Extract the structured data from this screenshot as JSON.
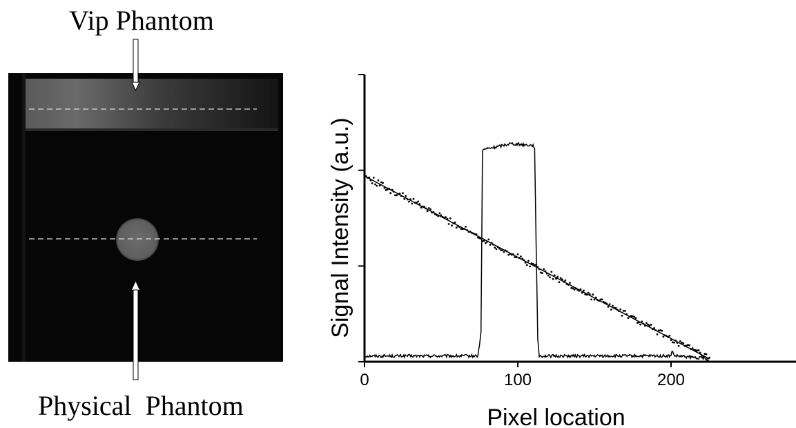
{
  "image_panel": {
    "top_label": "Vip Phantom",
    "bottom_label": "Physical  Phantom"
  },
  "chart_data": {
    "type": "line",
    "xlabel": "Pixel location",
    "ylabel": "Signal Intensity (a.u.)",
    "xlim": [
      0,
      250
    ],
    "ylim": [
      0,
      3
    ],
    "x_ticks": [
      0,
      100,
      200
    ],
    "y_ticks": [
      0,
      1,
      2,
      3
    ],
    "show_y_tick_labels": false,
    "grid": false,
    "series": [
      {
        "style": "line",
        "x": [
          0,
          74,
          76,
          77,
          78,
          85,
          95,
          110,
          111,
          112,
          113,
          114,
          200,
          201,
          202,
          203,
          225
        ],
        "y": [
          0.06,
          0.06,
          0.3,
          2.2,
          2.22,
          2.24,
          2.28,
          2.26,
          2.24,
          1.2,
          0.25,
          0.06,
          0.06,
          0.12,
          0.06,
          0.06,
          0.03
        ]
      },
      {
        "style": "dots",
        "x": [
          0,
          225
        ],
        "y": [
          1.94,
          0.03
        ]
      },
      {
        "style": "line",
        "x": [
          0,
          225
        ],
        "y": [
          1.94,
          0.03
        ]
      }
    ],
    "colors": {
      "line": "#000000"
    }
  }
}
